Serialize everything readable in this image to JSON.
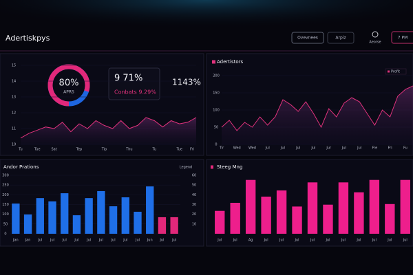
{
  "header": {
    "title": "Adertiskpys",
    "buttons": [
      "Ovevnees",
      "Arpiz"
    ],
    "user": "Aeorse",
    "time": "7 PM"
  },
  "kpis": {
    "donut": {
      "value": 80,
      "value_label": "80%",
      "caption": "APRS"
    },
    "k1": "9 71%",
    "k2": "Conbats 9.29%",
    "k3": "1143%"
  },
  "chart_data": [
    {
      "type": "line",
      "color": "#e0327c",
      "categories": [
        "Tu",
        null,
        "Tue",
        null,
        "Sat",
        null,
        null,
        "Tep",
        null,
        null,
        "Tip",
        null,
        null,
        "Thu",
        null,
        null,
        "Tu",
        null,
        null,
        "Tue",
        null,
        "Fri"
      ],
      "values": [
        10.4,
        10.7,
        10.9,
        11.1,
        11.0,
        11.4,
        10.8,
        11.3,
        11.0,
        11.5,
        11.2,
        11.0,
        11.5,
        11.0,
        11.2,
        11.7,
        11.5,
        11.1,
        11.5,
        11.3,
        11.4,
        11.7
      ],
      "ylim": [
        10,
        15
      ],
      "yticks": [
        10,
        11,
        12,
        13,
        14,
        15
      ]
    },
    {
      "type": "line",
      "title": "Adertistors",
      "color": "#e0327c",
      "series": [
        {
          "name": "Profit",
          "color": "#e0327c",
          "values": [
            50,
            70,
            40,
            64,
            50,
            80,
            56,
            80,
            130,
            116,
            96,
            124,
            90,
            50,
            104,
            80,
            120,
            136,
            124,
            90,
            56,
            100,
            80,
            140,
            160,
            170
          ]
        }
      ],
      "categories": [
        "Tir",
        null,
        "Wed",
        null,
        "Wed",
        null,
        "Jul",
        null,
        "Jul",
        null,
        "Jul",
        null,
        "Jul",
        null,
        "Jur",
        null,
        "Jul",
        null,
        "Jul",
        null,
        "Fre",
        null,
        "Fri",
        null,
        "Fu",
        null
      ],
      "ylim": [
        0,
        200
      ],
      "yticks": [
        0,
        50,
        100,
        150,
        200
      ]
    },
    {
      "type": "bar",
      "title": "Andor Prations",
      "legend": "Legend",
      "categories": [
        "Jan",
        "Jan",
        "Jul",
        "Jul",
        "Jul",
        "Jul",
        "Jul",
        "Jul",
        "Jul",
        "Jul",
        "Jul",
        "Jun",
        "Jul",
        "Jul"
      ],
      "values": [
        155,
        99,
        183,
        166,
        208,
        95,
        183,
        219,
        141,
        187,
        113,
        243,
        85,
        85
      ],
      "colors": [
        "#1f6fe8",
        "#1f6fe8",
        "#1f6fe8",
        "#1f6fe8",
        "#1f6fe8",
        "#1f6fe8",
        "#1f6fe8",
        "#1f6fe8",
        "#1f6fe8",
        "#1f6fe8",
        "#1f6fe8",
        "#1f6fe8",
        "#e2287a",
        "#e2287a"
      ],
      "ylim": [
        0,
        300
      ],
      "yticks": [
        0,
        50,
        100,
        150,
        200,
        250,
        300
      ],
      "y2lim": [
        0,
        60
      ],
      "y2ticks": [
        10,
        20,
        30,
        40,
        50,
        60
      ]
    },
    {
      "type": "bar",
      "title": "Steeg Mng",
      "categories": [
        "Jul",
        "Jul",
        "Ag",
        "Jul",
        "Jul",
        "Jul",
        "Jul",
        "Jul",
        "Jul",
        "Jul",
        "Jul",
        "Jul",
        "Jul"
      ],
      "values": [
        37,
        50,
        87,
        60,
        70,
        44,
        83,
        47,
        83,
        67,
        87,
        48,
        87
      ],
      "color": "#ee1f8c",
      "ylim": [
        0,
        100
      ]
    }
  ]
}
